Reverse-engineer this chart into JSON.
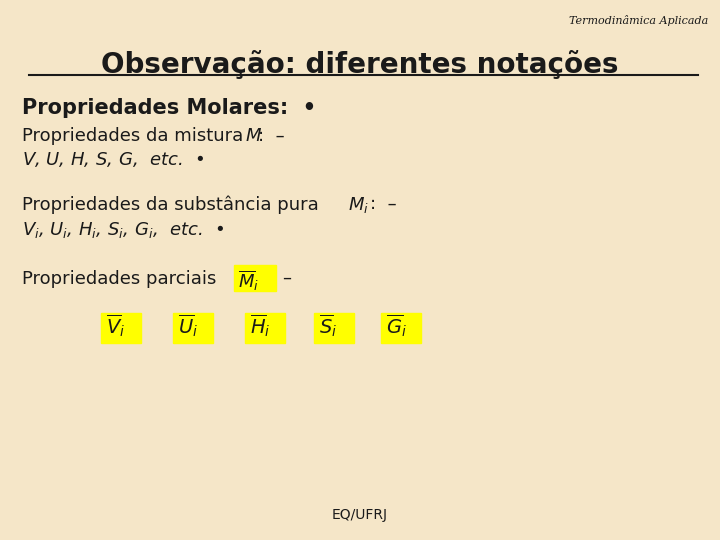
{
  "background_color": "#f5e6c8",
  "title_text": "Observação: diferentes notações",
  "header_text": "Termodinâmica Aplicada",
  "footer_text": "EQ/UFRJ",
  "text_color": "#1a1a1a",
  "yellow_bg": "#ffff00",
  "title_fontsize": 20,
  "header_fontsize": 8,
  "body_fontsize": 13,
  "bold_fontsize": 15,
  "footer_fontsize": 10
}
